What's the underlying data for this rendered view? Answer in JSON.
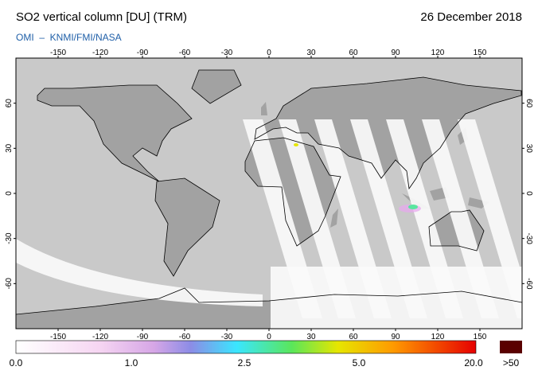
{
  "header": {
    "title": "SO2 vertical column [DU] (TRM)",
    "date": "26 December 2018",
    "source": "OMI  –  KNMI/FMI/NASA"
  },
  "map": {
    "lon_ticks": [
      -150,
      -120,
      -90,
      -60,
      -30,
      0,
      30,
      60,
      90,
      120,
      150
    ],
    "lat_ticks": [
      60,
      30,
      0,
      -30,
      -60
    ]
  },
  "colorbar": {
    "labels": [
      "0.0",
      "1.0",
      "2.5",
      "5.0",
      "20.0"
    ],
    "overflow_label": ">50"
  }
}
